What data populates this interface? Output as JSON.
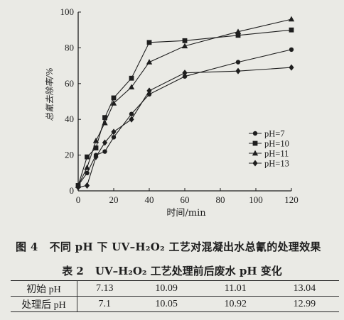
{
  "chart_data": {
    "type": "line",
    "title": "",
    "xlabel": "时间/min",
    "ylabel": "总氰去除率/%",
    "xlim": [
      0,
      120
    ],
    "ylim": [
      0,
      100
    ],
    "x_ticks": [
      0,
      20,
      40,
      60,
      80,
      100,
      120
    ],
    "y_ticks": [
      0,
      20,
      40,
      60,
      80,
      100
    ],
    "legend_position": "lower-right",
    "series": [
      {
        "name": "pH=7",
        "marker": "circle",
        "x": [
          0,
          5,
          10,
          15,
          20,
          30,
          40,
          60,
          90,
          120
        ],
        "y": [
          3,
          10,
          20,
          22,
          30,
          43,
          54,
          64,
          72,
          79
        ]
      },
      {
        "name": "pH=10",
        "marker": "square",
        "x": [
          0,
          5,
          10,
          15,
          20,
          30,
          40,
          60,
          90,
          120
        ],
        "y": [
          3,
          19,
          24,
          41,
          52,
          63,
          83,
          84,
          87,
          90
        ]
      },
      {
        "name": "pH=11",
        "marker": "triangle",
        "x": [
          0,
          5,
          10,
          15,
          20,
          30,
          40,
          60,
          90,
          120
        ],
        "y": [
          3,
          13,
          28,
          38,
          49,
          58,
          72,
          81,
          89,
          96
        ]
      },
      {
        "name": "pH=13",
        "marker": "diamond",
        "x": [
          0,
          5,
          10,
          15,
          20,
          30,
          40,
          60,
          90,
          120
        ],
        "y": [
          2,
          3,
          19,
          27,
          33,
          40,
          56,
          66,
          67,
          69
        ]
      }
    ]
  },
  "figure_caption": {
    "number": "图 4",
    "text": "不同 pH 下 UV–H₂O₂ 工艺对混凝出水总氰的处理效果"
  },
  "table": {
    "caption_number": "表 2",
    "caption_text": "UV–H₂O₂ 工艺处理前后废水 pH 变化",
    "rows": [
      {
        "label": "初始 pH",
        "values": [
          "7.13",
          "10.09",
          "11.01",
          "13.04"
        ]
      },
      {
        "label": "处理后 pH",
        "values": [
          "7.1",
          "10.05",
          "10.92",
          "12.99"
        ]
      }
    ]
  }
}
